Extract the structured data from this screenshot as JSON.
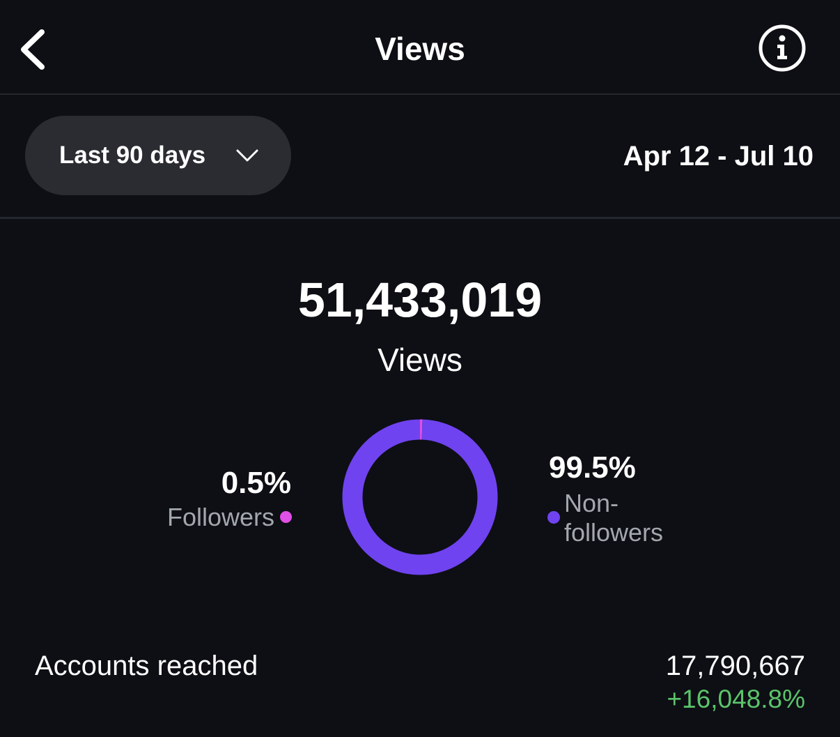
{
  "header": {
    "title": "Views"
  },
  "filter": {
    "range": "Last 90 days",
    "dates": "Apr 12 - Jul 10"
  },
  "summary": {
    "total": "51,433,019",
    "label": "Views"
  },
  "donut": {
    "segments": [
      {
        "label": "Followers",
        "value": 0.5,
        "value_label": "0.5%",
        "color": "#e04fe6"
      },
      {
        "label": "Non-followers",
        "value": 99.5,
        "value_label": "99.5%",
        "color": "#7043f0"
      }
    ]
  },
  "metrics": [
    {
      "label": "Accounts reached",
      "value": "17,790,667",
      "change": "+16,048.8%"
    }
  ]
}
